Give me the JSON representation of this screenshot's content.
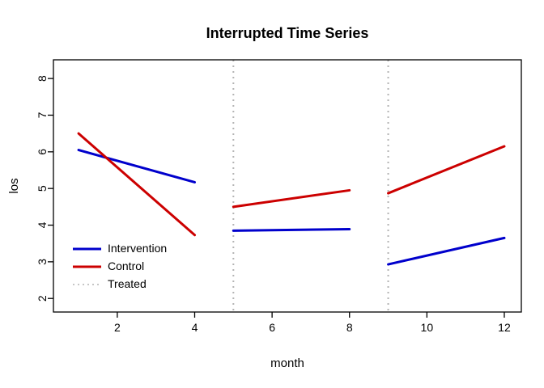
{
  "chart_data": {
    "type": "line",
    "title": "Interrupted Time Series",
    "xlabel": "month",
    "ylabel": "los",
    "xlim": [
      0.35,
      12.44
    ],
    "ylim": [
      1.63,
      8.51
    ],
    "x_ticks": [
      2,
      4,
      6,
      8,
      10,
      12
    ],
    "y_ticks": [
      2,
      3,
      4,
      5,
      6,
      7,
      8
    ],
    "grid": false,
    "treated_lines_x": [
      5,
      9
    ],
    "treated_line_color": "#b4b4b4",
    "series": [
      {
        "name": "Intervention",
        "color": "#0000cc",
        "style": "solid",
        "segments": [
          {
            "x": [
              1,
              4
            ],
            "y": [
              6.05,
              5.17
            ]
          },
          {
            "x": [
              5,
              8
            ],
            "y": [
              3.85,
              3.89
            ]
          },
          {
            "x": [
              9,
              12
            ],
            "y": [
              2.93,
              3.65
            ]
          }
        ]
      },
      {
        "name": "Control",
        "color": "#cc0000",
        "style": "solid",
        "segments": [
          {
            "x": [
              1,
              4
            ],
            "y": [
              6.5,
              3.73
            ]
          },
          {
            "x": [
              5,
              8
            ],
            "y": [
              4.5,
              4.95
            ]
          },
          {
            "x": [
              9,
              12
            ],
            "y": [
              4.87,
              6.15
            ]
          }
        ]
      }
    ],
    "legend": {
      "position": "bottom-left",
      "border": false,
      "items": [
        {
          "label": "Intervention",
          "color": "#0000cc",
          "style": "solid"
        },
        {
          "label": "Control",
          "color": "#cc0000",
          "style": "solid"
        },
        {
          "label": "Treated",
          "color": "#b4b4b4",
          "style": "dotted"
        }
      ]
    }
  }
}
